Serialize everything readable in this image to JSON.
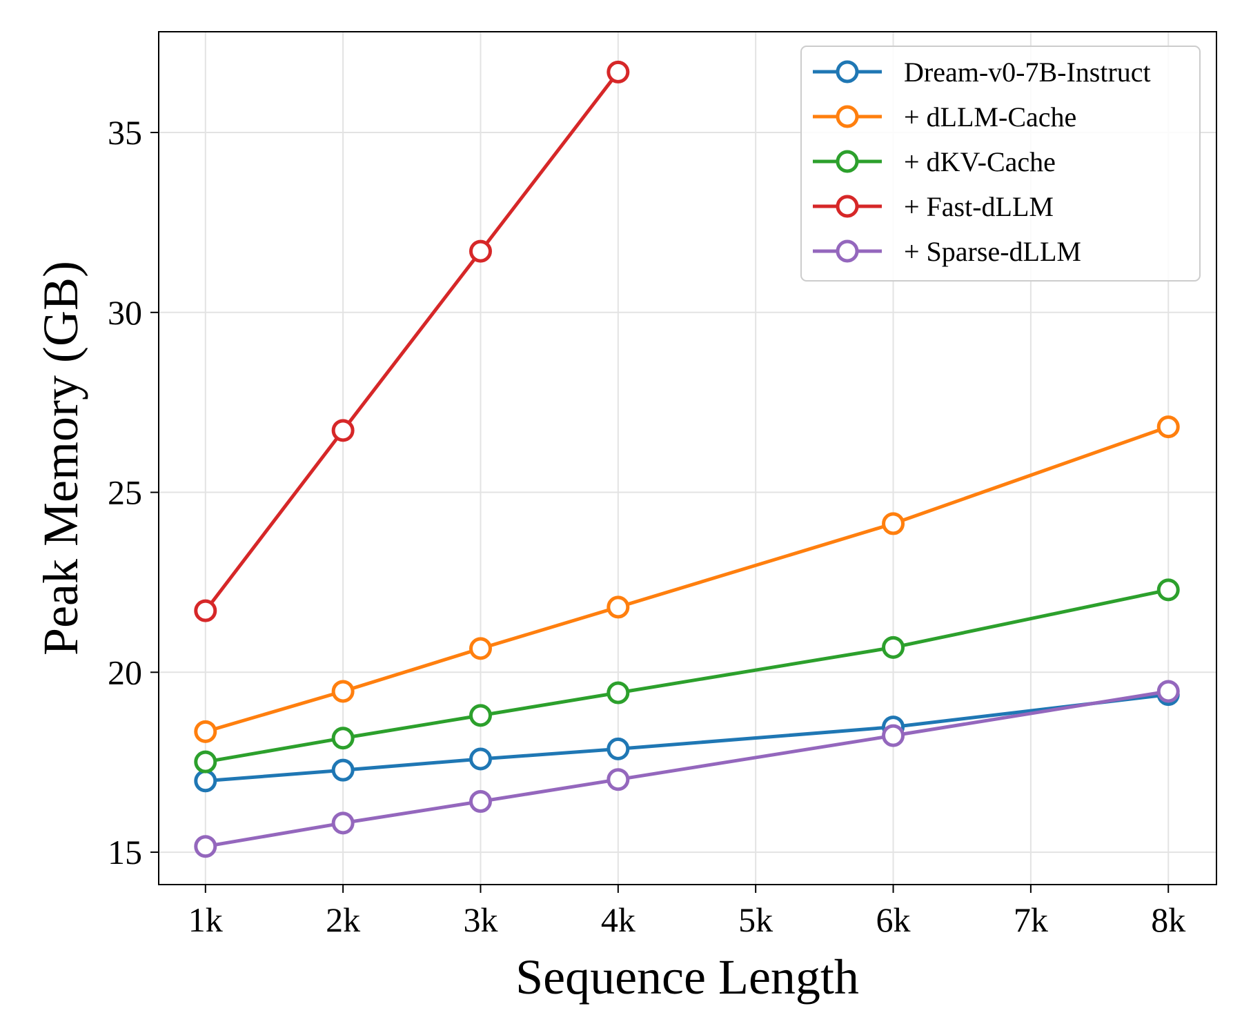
{
  "chart_data": {
    "type": "line",
    "xlabel": "Sequence Length",
    "ylabel": "Peak Memory (GB)",
    "xlim": [
      0.66,
      8.35
    ],
    "ylim": [
      14.1,
      37.8
    ],
    "grid": true,
    "legend_position": "top-right",
    "x_ticks": [
      {
        "value": 1,
        "label": "1k"
      },
      {
        "value": 2,
        "label": "2k"
      },
      {
        "value": 3,
        "label": "3k"
      },
      {
        "value": 4,
        "label": "4k"
      },
      {
        "value": 5,
        "label": "5k"
      },
      {
        "value": 6,
        "label": "6k"
      },
      {
        "value": 7,
        "label": "7k"
      },
      {
        "value": 8,
        "label": "8k"
      }
    ],
    "y_ticks": [
      {
        "value": 15,
        "label": "15"
      },
      {
        "value": 20,
        "label": "20"
      },
      {
        "value": 25,
        "label": "25"
      },
      {
        "value": 30,
        "label": "30"
      },
      {
        "value": 35,
        "label": "35"
      }
    ],
    "series": [
      {
        "name": "Dream-v0-7B-Instruct",
        "color": "#1f77b4",
        "x": [
          1,
          2,
          3,
          4,
          6,
          8
        ],
        "values": [
          16.98,
          17.28,
          17.59,
          17.87,
          18.48,
          19.38
        ]
      },
      {
        "name": "+ dLLM-Cache",
        "color": "#ff7f0e",
        "x": [
          1,
          2,
          3,
          4,
          6,
          8
        ],
        "values": [
          18.35,
          19.47,
          20.66,
          21.81,
          24.13,
          26.82
        ]
      },
      {
        "name": "+ dKV-Cache",
        "color": "#2ca02c",
        "x": [
          1,
          2,
          3,
          4,
          6,
          8
        ],
        "values": [
          17.51,
          18.17,
          18.8,
          19.43,
          20.69,
          22.29
        ]
      },
      {
        "name": "+ Fast-dLLM",
        "color": "#d62728",
        "x": [
          1,
          2,
          3,
          4
        ],
        "values": [
          21.71,
          26.72,
          31.7,
          36.68
        ]
      },
      {
        "name": "+ Sparse-dLLM",
        "color": "#9467bd",
        "x": [
          1,
          2,
          3,
          4,
          6,
          8
        ],
        "values": [
          15.16,
          15.81,
          16.41,
          17.02,
          18.24,
          19.47
        ]
      }
    ]
  }
}
